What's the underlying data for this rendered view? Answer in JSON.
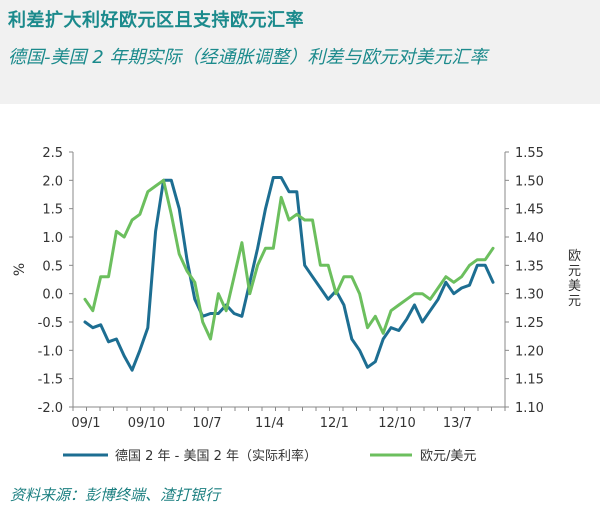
{
  "header": {
    "title": "利差扩大利好欧元区且支持欧元汇率",
    "subtitle": "德国-美国 2 年期实际（经通胀调整）利差与欧元对美元汇率"
  },
  "source": "资料来源：彭博终端、渣打银行",
  "colors": {
    "spread": "#1d6e92",
    "eurusd": "#6cbf5e",
    "title": "#1b8a8c",
    "header_bg": "#f1f1f1"
  },
  "chart_data": {
    "type": "line",
    "x_tick_labels": [
      "09/1",
      "09/10",
      "10/7",
      "11/4",
      "12/1",
      "12/10",
      "13/7"
    ],
    "legend_position": "bottom",
    "grid": false,
    "left_axis": {
      "label": "%",
      "range": [
        -2.0,
        2.5
      ],
      "ticks": [
        "2.5",
        "2.0",
        "1.5",
        "1.0",
        "0.5",
        "0.0",
        "-0.5",
        "-1.0",
        "-1.5",
        "-2.0"
      ]
    },
    "right_axis": {
      "label": "欧元美元",
      "range": [
        1.1,
        1.55
      ],
      "ticks": [
        "1.55",
        "1.50",
        "1.45",
        "1.40",
        "1.35",
        "1.30",
        "1.25",
        "1.20",
        "1.15",
        "1.10"
      ]
    },
    "series": [
      {
        "name": "德国 2 年 - 美国 2 年（实际利率）",
        "axis": "left",
        "color": "#1d6e92",
        "values": [
          -0.5,
          -0.6,
          -0.55,
          -0.85,
          -0.8,
          -1.1,
          -1.35,
          -1.0,
          -0.6,
          1.1,
          2.0,
          2.0,
          1.5,
          0.6,
          -0.1,
          -0.4,
          -0.35,
          -0.35,
          -0.2,
          -0.35,
          -0.4,
          0.2,
          0.8,
          1.5,
          2.05,
          2.05,
          1.8,
          1.8,
          0.5,
          0.3,
          0.1,
          -0.1,
          0.05,
          -0.2,
          -0.8,
          -1.0,
          -1.3,
          -1.2,
          -0.8,
          -0.6,
          -0.65,
          -0.45,
          -0.2,
          -0.5,
          -0.3,
          -0.1,
          0.2,
          0.0,
          0.1,
          0.15,
          0.5,
          0.5,
          0.2
        ]
      },
      {
        "name": "欧元/美元",
        "axis": "right",
        "color": "#6cbf5e",
        "values": [
          1.29,
          1.27,
          1.33,
          1.33,
          1.41,
          1.4,
          1.43,
          1.44,
          1.48,
          1.49,
          1.5,
          1.44,
          1.37,
          1.34,
          1.32,
          1.25,
          1.22,
          1.3,
          1.27,
          1.33,
          1.39,
          1.3,
          1.35,
          1.38,
          1.38,
          1.47,
          1.43,
          1.44,
          1.43,
          1.43,
          1.35,
          1.35,
          1.3,
          1.33,
          1.33,
          1.3,
          1.24,
          1.26,
          1.23,
          1.27,
          1.28,
          1.29,
          1.3,
          1.3,
          1.29,
          1.31,
          1.33,
          1.32,
          1.33,
          1.35,
          1.36,
          1.36,
          1.38
        ]
      }
    ]
  }
}
